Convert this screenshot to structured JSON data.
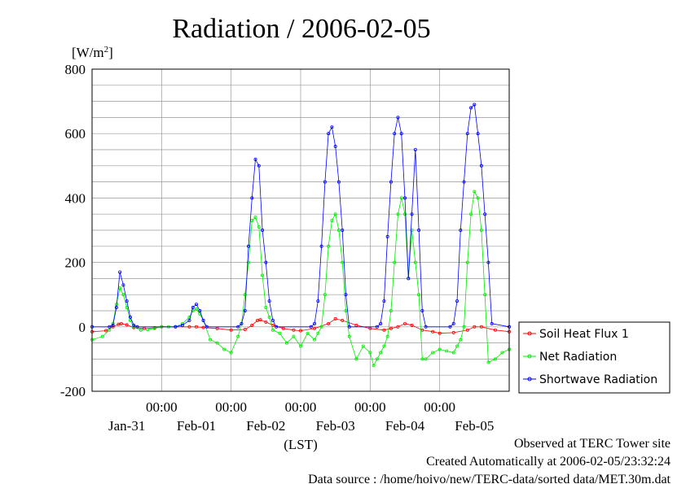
{
  "chart_data": {
    "type": "line",
    "title": "Radiation / 2006-02-05",
    "ylabel": "[W/m",
    "ylabel_sup": "2",
    "ylabel_close": "]",
    "xlabel": "(LST)",
    "ylim": [
      -200,
      800
    ],
    "yticks": [
      -200,
      0,
      200,
      400,
      600,
      800
    ],
    "x_range_days": [
      0,
      6
    ],
    "time_tick_label": "00:00",
    "day_labels": [
      "Jan-31",
      "Feb-01",
      "Feb-02",
      "Feb-03",
      "Feb-04",
      "Feb-05"
    ],
    "grid": true,
    "legend_position": "right",
    "series": [
      {
        "name": "Soil Heat Flux 1",
        "color": "#ff0000",
        "x": [
          0,
          0.2,
          0.3,
          0.38,
          0.42,
          0.5,
          0.6,
          0.75,
          0.9,
          1.0,
          1.2,
          1.4,
          1.5,
          1.6,
          1.8,
          2.0,
          2.2,
          2.3,
          2.38,
          2.42,
          2.5,
          2.6,
          2.75,
          2.9,
          3.0,
          3.2,
          3.4,
          3.5,
          3.6,
          3.8,
          4.0,
          4.2,
          4.3,
          4.4,
          4.5,
          4.6,
          4.75,
          4.9,
          5.0,
          5.2,
          5.4,
          5.5,
          5.6,
          5.8,
          6.0
        ],
        "y": [
          -15,
          -12,
          0,
          8,
          10,
          6,
          -2,
          -5,
          -3,
          0,
          0,
          0,
          0,
          -2,
          -5,
          -10,
          -8,
          5,
          20,
          22,
          15,
          5,
          -5,
          -10,
          -12,
          -5,
          10,
          25,
          20,
          5,
          -5,
          -10,
          -5,
          0,
          10,
          5,
          -10,
          -15,
          -20,
          -18,
          -10,
          0,
          0,
          -10,
          -15
        ]
      },
      {
        "name": "Net Radiation",
        "color": "#00ee00",
        "x": [
          0,
          0.15,
          0.25,
          0.3,
          0.35,
          0.4,
          0.45,
          0.5,
          0.55,
          0.6,
          0.7,
          0.8,
          0.9,
          1.0,
          1.1,
          1.2,
          1.3,
          1.4,
          1.45,
          1.5,
          1.55,
          1.6,
          1.7,
          1.8,
          1.9,
          2.0,
          2.1,
          2.15,
          2.2,
          2.25,
          2.3,
          2.35,
          2.4,
          2.45,
          2.5,
          2.55,
          2.6,
          2.7,
          2.8,
          2.9,
          3.0,
          3.1,
          3.2,
          3.25,
          3.3,
          3.35,
          3.4,
          3.45,
          3.5,
          3.55,
          3.6,
          3.65,
          3.7,
          3.8,
          3.9,
          4.0,
          4.05,
          4.1,
          4.15,
          4.2,
          4.25,
          4.3,
          4.35,
          4.4,
          4.45,
          4.5,
          4.55,
          4.6,
          4.65,
          4.7,
          4.75,
          4.8,
          4.9,
          5.0,
          5.1,
          5.2,
          5.25,
          5.3,
          5.35,
          5.4,
          5.45,
          5.5,
          5.55,
          5.6,
          5.65,
          5.7,
          5.8,
          5.9,
          6.0
        ],
        "y": [
          -40,
          -30,
          -10,
          10,
          70,
          120,
          100,
          60,
          20,
          0,
          -10,
          -8,
          -5,
          0,
          0,
          0,
          10,
          30,
          50,
          55,
          40,
          20,
          -40,
          -50,
          -70,
          -80,
          -30,
          10,
          100,
          200,
          330,
          340,
          310,
          160,
          60,
          30,
          -10,
          -20,
          -50,
          -30,
          -60,
          -20,
          -40,
          -20,
          0,
          100,
          250,
          330,
          350,
          300,
          200,
          50,
          -30,
          -100,
          -60,
          -80,
          -120,
          -100,
          -80,
          -60,
          -30,
          50,
          200,
          350,
          400,
          350,
          150,
          300,
          200,
          100,
          -100,
          -100,
          -80,
          -70,
          -75,
          -80,
          -60,
          -40,
          0,
          200,
          350,
          420,
          400,
          300,
          100,
          -110,
          -100,
          -80,
          -70
        ]
      },
      {
        "name": "Shortwave Radiation",
        "color": "#0000ff",
        "x": [
          0,
          0.25,
          0.3,
          0.35,
          0.4,
          0.45,
          0.5,
          0.55,
          0.6,
          0.65,
          1.2,
          1.3,
          1.4,
          1.45,
          1.5,
          1.55,
          1.6,
          1.65,
          2.1,
          2.15,
          2.2,
          2.25,
          2.3,
          2.35,
          2.4,
          2.45,
          2.5,
          2.55,
          2.6,
          2.65,
          3.15,
          3.2,
          3.25,
          3.3,
          3.35,
          3.4,
          3.45,
          3.5,
          3.55,
          3.6,
          3.65,
          3.7,
          4.1,
          4.15,
          4.2,
          4.25,
          4.3,
          4.35,
          4.4,
          4.45,
          4.5,
          4.55,
          4.6,
          4.65,
          4.7,
          4.75,
          4.8,
          5.15,
          5.2,
          5.25,
          5.3,
          5.35,
          5.4,
          5.45,
          5.5,
          5.55,
          5.6,
          5.65,
          5.7,
          5.75,
          6.0
        ],
        "y": [
          0,
          0,
          5,
          60,
          170,
          130,
          80,
          30,
          5,
          0,
          0,
          5,
          20,
          60,
          70,
          50,
          20,
          0,
          0,
          10,
          50,
          250,
          400,
          520,
          500,
          300,
          200,
          80,
          20,
          0,
          0,
          10,
          80,
          250,
          450,
          600,
          620,
          560,
          450,
          300,
          100,
          0,
          0,
          10,
          80,
          280,
          450,
          600,
          650,
          600,
          400,
          150,
          350,
          550,
          300,
          50,
          0,
          0,
          10,
          80,
          300,
          450,
          600,
          680,
          690,
          600,
          500,
          350,
          200,
          10,
          0
        ]
      }
    ]
  },
  "footer": {
    "line1": "Observed at TERC Tower site",
    "line2": "Created Automatically at 2006-02-05/23:32:24",
    "line3": "Data source : /home/hoivo/new/TERC-data/sorted  data/MET.30m.dat"
  }
}
